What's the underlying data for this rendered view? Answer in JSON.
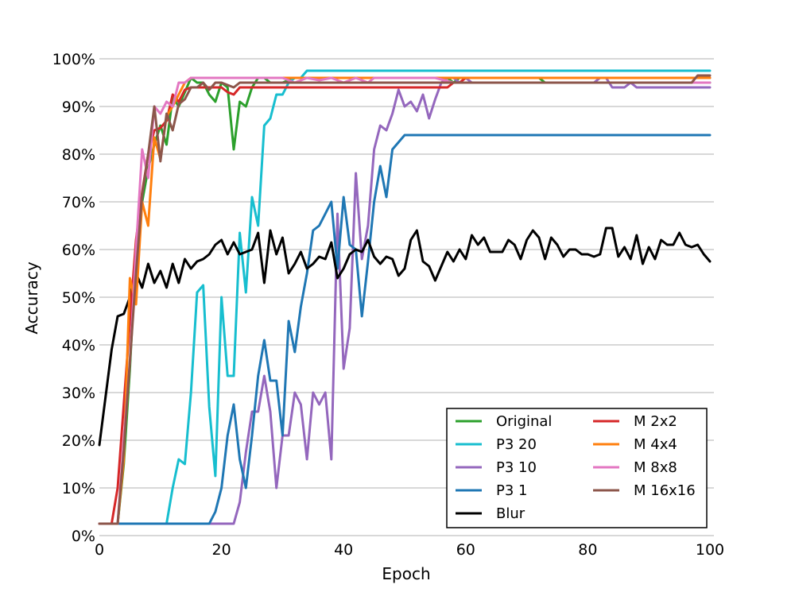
{
  "chart_data": {
    "type": "line",
    "title": "",
    "xlabel": "Epoch",
    "ylabel": "Accuracy",
    "xlim": [
      0,
      100
    ],
    "ylim": [
      0,
      100
    ],
    "x_ticks": [
      "0",
      "20",
      "40",
      "60",
      "80",
      "100"
    ],
    "y_ticks": [
      "0%",
      "10%",
      "20%",
      "30%",
      "40%",
      "50%",
      "60%",
      "70%",
      "80%",
      "90%",
      "100%"
    ],
    "grid": "horizontal",
    "legend_position": "lower-right",
    "series": [
      {
        "name": "Original",
        "color": "#2ca02c",
        "x": [
          0,
          1,
          2,
          3,
          4,
          5,
          6,
          7,
          8,
          9,
          10,
          11,
          12,
          13,
          14,
          15,
          16,
          17,
          18,
          19,
          20,
          21,
          22,
          23,
          24,
          25,
          26,
          27,
          28,
          29,
          30,
          32,
          34,
          40,
          50,
          55,
          57,
          58,
          59,
          60,
          61,
          62,
          70,
          72,
          73,
          80,
          90,
          100
        ],
        "y": [
          2.5,
          2.5,
          2.5,
          2.5,
          15,
          35,
          60,
          70,
          77,
          82,
          86,
          82,
          92,
          90,
          93,
          96,
          95,
          95,
          92.5,
          91,
          95,
          94,
          81,
          91,
          90,
          94,
          96,
          96,
          95,
          95,
          95,
          96,
          96,
          96,
          96,
          96,
          96,
          95,
          96,
          96,
          96,
          96,
          96,
          96,
          95,
          95,
          95,
          95
        ]
      },
      {
        "name": "P3 20",
        "color": "#17becf",
        "x": [
          0,
          10,
          11,
          12,
          13,
          14,
          15,
          16,
          17,
          18,
          19,
          20,
          21,
          22,
          23,
          24,
          25,
          26,
          27,
          28,
          29,
          30,
          31,
          32,
          33,
          34,
          40,
          50,
          60,
          70,
          80,
          90,
          100
        ],
        "y": [
          2.5,
          2.5,
          2.5,
          10,
          16,
          15,
          30,
          51,
          52.5,
          27,
          12.5,
          50,
          33.5,
          33.5,
          63.5,
          51,
          71,
          65,
          86,
          87.5,
          92.5,
          92.5,
          95,
          96,
          96,
          97.5,
          97.5,
          97.5,
          97.5,
          97.5,
          97.5,
          97.5,
          97.5
        ]
      },
      {
        "name": "P3 10",
        "color": "#9467bd",
        "x": [
          0,
          10,
          19,
          20,
          21,
          22,
          23,
          24,
          25,
          26,
          27,
          28,
          29,
          30,
          31,
          32,
          33,
          34,
          35,
          36,
          37,
          38,
          39,
          40,
          41,
          42,
          43,
          44,
          45,
          46,
          47,
          48,
          49,
          50,
          51,
          52,
          53,
          54,
          55,
          56,
          57,
          58,
          59,
          60,
          61,
          62,
          70,
          80,
          81,
          82,
          83,
          84,
          85,
          86,
          87,
          88,
          90,
          100
        ],
        "y": [
          2.5,
          2.5,
          2.5,
          2.5,
          2.5,
          2.5,
          7,
          17.5,
          26,
          26,
          33.5,
          26,
          10,
          21,
          21,
          30,
          27.5,
          16,
          30,
          27.5,
          30,
          16,
          67.5,
          35,
          43.5,
          76,
          58,
          65,
          81,
          86,
          85,
          88.5,
          93.5,
          90,
          91,
          89,
          92.5,
          87.5,
          91.5,
          95,
          96,
          96,
          95,
          96,
          95,
          95,
          95,
          95,
          95,
          96,
          96,
          94,
          94,
          94,
          95,
          94,
          94,
          94
        ]
      },
      {
        "name": "P3 1",
        "color": "#1f77b4",
        "x": [
          0,
          10,
          17,
          18,
          19,
          20,
          21,
          22,
          23,
          24,
          25,
          26,
          27,
          28,
          29,
          30,
          31,
          32,
          33,
          34,
          35,
          36,
          37,
          38,
          39,
          40,
          41,
          42,
          43,
          44,
          45,
          46,
          47,
          48,
          49,
          50,
          60,
          70,
          80,
          90,
          100
        ],
        "y": [
          2.5,
          2.5,
          2.5,
          2.5,
          5,
          10,
          21,
          27.5,
          16,
          10,
          21,
          33.5,
          41,
          32.5,
          32.5,
          21,
          45,
          38.5,
          48,
          55,
          64,
          65,
          67.5,
          70,
          56,
          71,
          61,
          60,
          46,
          57.5,
          70,
          77.5,
          71,
          81,
          82.5,
          84,
          84,
          84,
          84,
          84,
          84
        ]
      },
      {
        "name": "Blur",
        "color": "#000000",
        "x": [
          0,
          1,
          2,
          3,
          4,
          5,
          6,
          7,
          8,
          9,
          10,
          11,
          12,
          13,
          14,
          15,
          16,
          17,
          18,
          19,
          20,
          21,
          22,
          23,
          24,
          25,
          26,
          27,
          28,
          29,
          30,
          31,
          32,
          33,
          34,
          35,
          36,
          37,
          38,
          39,
          40,
          41,
          42,
          43,
          44,
          45,
          46,
          47,
          48,
          49,
          50,
          51,
          52,
          53,
          54,
          55,
          56,
          57,
          58,
          59,
          60,
          61,
          62,
          63,
          64,
          65,
          66,
          67,
          68,
          69,
          70,
          71,
          72,
          73,
          74,
          75,
          76,
          77,
          78,
          79,
          80,
          81,
          82,
          83,
          84,
          85,
          86,
          87,
          88,
          89,
          90,
          91,
          92,
          93,
          94,
          95,
          96,
          97,
          98,
          99,
          100
        ],
        "y": [
          19,
          29,
          39,
          46,
          46.5,
          50,
          55,
          52,
          57,
          53,
          55.5,
          52,
          57,
          53,
          58,
          56,
          57.5,
          58,
          59,
          61,
          62,
          59,
          61.5,
          59,
          59.5,
          60,
          63.5,
          53,
          64,
          59,
          62.5,
          55,
          57,
          59.5,
          56,
          57,
          58.5,
          58,
          61.5,
          54,
          56,
          59,
          60,
          59.5,
          62,
          58.5,
          57,
          58.5,
          58,
          54.5,
          56,
          62,
          64,
          57.5,
          56.5,
          53.5,
          56.5,
          59.5,
          57.5,
          60,
          58,
          63,
          61,
          62.5,
          59.5,
          59.5,
          59.5,
          62,
          61,
          58,
          62,
          64,
          62.5,
          58,
          62.5,
          61,
          58.5,
          60,
          60,
          59,
          59,
          58.5,
          59,
          64.5,
          64.5,
          58.5,
          60.5,
          58,
          63,
          57,
          60.5,
          58,
          62,
          61,
          61,
          63.5,
          61,
          60.5,
          61,
          59,
          57.5
        ]
      },
      {
        "name": "M 2x2",
        "color": "#d62728",
        "x": [
          0,
          2,
          3,
          4,
          5,
          6,
          7,
          8,
          9,
          10,
          11,
          12,
          13,
          14,
          15,
          16,
          17,
          18,
          19,
          20,
          21,
          22,
          23,
          40,
          50,
          56,
          57,
          58,
          59,
          60,
          61,
          62,
          70,
          80,
          90,
          98,
          99,
          100
        ],
        "y": [
          2.5,
          2.5,
          10,
          27.5,
          45,
          62,
          72,
          80,
          85,
          85.5,
          87,
          92.5,
          91,
          93.5,
          94,
          94,
          94,
          94,
          94,
          94,
          93,
          92.5,
          94,
          94,
          94,
          94,
          94,
          95,
          95,
          96,
          96,
          96,
          96,
          96,
          96,
          96,
          96,
          96
        ]
      },
      {
        "name": "M 4x4",
        "color": "#ff7f0e",
        "x": [
          0,
          2,
          3,
          4,
          5,
          6,
          7,
          8,
          9,
          10,
          11,
          12,
          13,
          14,
          15,
          20,
          30,
          40,
          50,
          60,
          70,
          80,
          90,
          100
        ],
        "y": [
          2.5,
          2.5,
          2.5,
          16,
          54,
          48.5,
          70,
          65,
          83.5,
          79,
          88,
          90,
          92.5,
          95,
          96,
          96,
          96,
          96,
          96,
          96,
          96,
          96,
          96,
          96
        ]
      },
      {
        "name": "M 8x8",
        "color": "#e377c2",
        "x": [
          0,
          2,
          3,
          4,
          5,
          6,
          7,
          8,
          9,
          10,
          11,
          12,
          13,
          14,
          15,
          16,
          17,
          18,
          19,
          20,
          21,
          30,
          32,
          34,
          36,
          38,
          40,
          42,
          44,
          45,
          50,
          55,
          58,
          60,
          62,
          70,
          80,
          90,
          100
        ],
        "y": [
          2.5,
          2.5,
          2.5,
          20,
          36.5,
          60,
          81,
          75,
          90,
          88.5,
          91,
          90,
          95,
          95,
          96,
          96,
          96,
          96,
          96,
          96,
          96,
          96,
          95,
          96,
          95.5,
          96,
          95,
          96,
          95,
          96,
          96,
          96,
          95,
          95,
          95,
          95,
          95,
          95,
          95
        ]
      },
      {
        "name": "M 16x16",
        "color": "#8c564b",
        "x": [
          0,
          2,
          3,
          4,
          5,
          6,
          7,
          8,
          9,
          10,
          11,
          12,
          13,
          14,
          15,
          16,
          17,
          18,
          19,
          20,
          22,
          23,
          30,
          40,
          50,
          55,
          60,
          62,
          70,
          80,
          90,
          97,
          98,
          100
        ],
        "y": [
          2.5,
          2.5,
          2.5,
          18,
          36.5,
          55,
          71.5,
          80,
          90,
          78.5,
          88.5,
          85,
          90.5,
          91.5,
          94,
          94,
          95,
          93.5,
          95,
          95,
          94,
          95,
          95,
          95,
          95,
          95,
          95,
          95,
          95,
          95,
          95,
          95,
          96.5,
          96.5
        ]
      }
    ]
  }
}
